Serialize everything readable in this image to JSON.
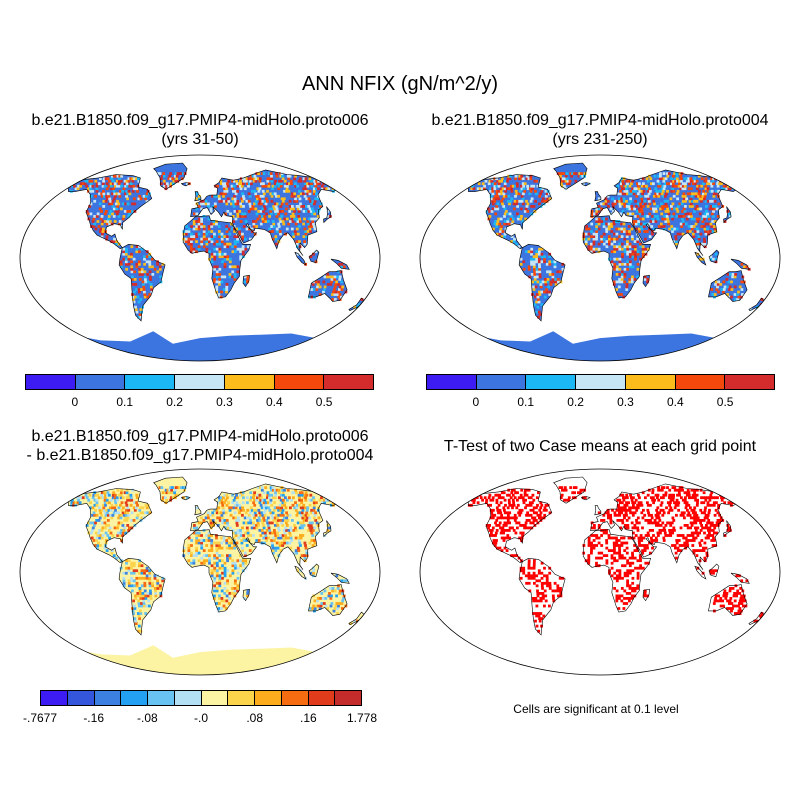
{
  "title": "ANN NFIX (gN/m^2/y)",
  "panels": [
    {
      "title_line1": "b.e21.B1850.f09_g17.PMIP4-midHolo.proto006",
      "title_line2": "(yrs 31-50)"
    },
    {
      "title_line1": "b.e21.B1850.f09_g17.PMIP4-midHolo.proto004",
      "title_line2": "(yrs 231-250)"
    },
    {
      "title_line1": "b.e21.B1850.f09_g17.PMIP4-midHolo.proto006",
      "title_line2": "- b.e21.B1850.f09_g17.PMIP4-midHolo.proto004"
    },
    {
      "title_line1": "T-Test of two Case means at each grid point"
    }
  ],
  "colorbars": {
    "abs": {
      "colors": [
        "#3c1cf2",
        "#3c74e0",
        "#1cb8f6",
        "#c6e6f6",
        "#fcbc1c",
        "#f4480c",
        "#d42c2c"
      ],
      "labels": [
        "0",
        "0.1",
        "0.2",
        "0.3",
        "0.4",
        "0.5"
      ]
    },
    "diff": {
      "colors": [
        "#3c1cf2",
        "#3456dc",
        "#3c80e2",
        "#23a0f2",
        "#68c2f2",
        "#b4e0f4",
        "#fcf4a2",
        "#fcd44c",
        "#fcac1c",
        "#f66c10",
        "#e03c1c",
        "#c42c2c"
      ],
      "labels": [
        ".7677",
        "-.16",
        "-.08",
        "-.0",
        ".08",
        ".16",
        "1.778"
      ],
      "first_label": "-.7677"
    }
  },
  "ttest_note": "Cells are significant at 0.1 level",
  "map_colors": {
    "base_abs": "#3c74e0",
    "base_diff": "#fcf4a2",
    "signif": "#ff0000"
  }
}
